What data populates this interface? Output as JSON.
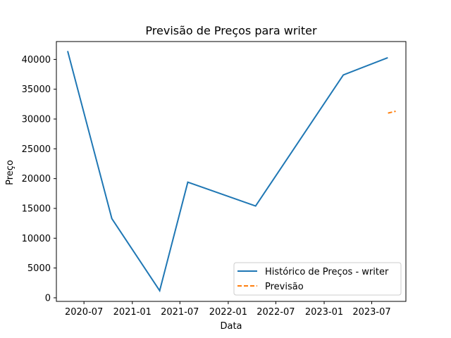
{
  "chart_data": {
    "type": "line",
    "title": "Previsão de Preços para writer",
    "xlabel": "Data",
    "ylabel": "Preço",
    "xlim": [
      "2020-03-18",
      "2023-11-08"
    ],
    "ylim": [
      -600,
      43000
    ],
    "x_ticks": [
      "2020-07-01",
      "2021-01-01",
      "2021-07-01",
      "2022-01-01",
      "2022-07-01",
      "2023-01-01",
      "2023-07-01"
    ],
    "x_tick_labels": [
      "2020-07",
      "2021-01",
      "2021-07",
      "2022-01",
      "2022-07",
      "2023-01",
      "2023-07"
    ],
    "y_ticks": [
      0,
      5000,
      10000,
      15000,
      20000,
      25000,
      30000,
      35000,
      40000
    ],
    "y_tick_labels": [
      "0",
      "5000",
      "10000",
      "15000",
      "20000",
      "25000",
      "30000",
      "35000",
      "40000"
    ],
    "grid": false,
    "legend_position": "lower-right",
    "series": [
      {
        "name": "Histórico de Preços - writer",
        "color": "#1f77b4",
        "style": "solid",
        "x": [
          "2020-04-30",
          "2020-10-15",
          "2021-04-15",
          "2021-07-31",
          "2022-04-15",
          "2023-03-15",
          "2023-08-31"
        ],
        "y": [
          41400,
          13300,
          1200,
          19400,
          15400,
          37400,
          40300
        ]
      },
      {
        "name": "Previsão",
        "color": "#ff7f0e",
        "style": "dashed",
        "x": [
          "2023-09-01",
          "2023-09-30"
        ],
        "y": [
          31000,
          31300
        ]
      }
    ]
  }
}
